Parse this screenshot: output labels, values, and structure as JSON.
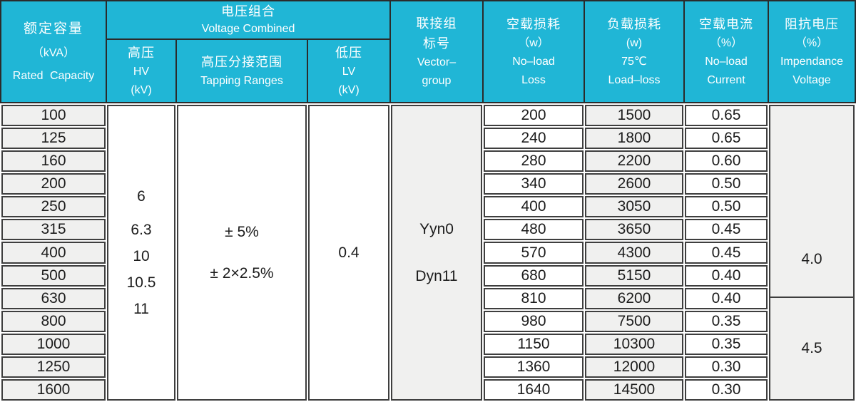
{
  "header": {
    "rated_capacity": {
      "zh": "额定容量",
      "unit": "（kVA）",
      "en": "Rated Capacity"
    },
    "voltage_combined": {
      "zh": "电压组合",
      "en": "Voltage Combined"
    },
    "hv": {
      "zh": "高压",
      "en": "HV",
      "unit": "(kV)"
    },
    "tapping": {
      "zh": "高压分接范围",
      "en": "Tapping Ranges"
    },
    "lv": {
      "zh": "低压",
      "en": "LV",
      "unit": "(kV)"
    },
    "vector_group": {
      "zh1": "联接组",
      "zh2": "标号",
      "en1": "Vector–",
      "en2": "group"
    },
    "no_load_loss": {
      "zh": "空载损耗",
      "unit": "（w）",
      "en1": "No–load",
      "en2": "Loss"
    },
    "load_loss": {
      "zh": "负载损耗",
      "unit": "(w)",
      "temp": "75℃",
      "en": "Load–loss"
    },
    "no_load_current": {
      "zh": "空载电流",
      "unit": "（%）",
      "en1": "No–load",
      "en2": "Current"
    },
    "impedance_voltage": {
      "zh": "阻抗电压",
      "unit": "（%）",
      "en1": "Impendance",
      "en2": "Voltage"
    }
  },
  "rows": {
    "capacities": [
      "100",
      "125",
      "160",
      "200",
      "250",
      "315",
      "400",
      "500",
      "630",
      "800",
      "1000",
      "1250",
      "1600"
    ],
    "no_load_loss": [
      "200",
      "240",
      "280",
      "340",
      "400",
      "480",
      "570",
      "680",
      "810",
      "980",
      "1150",
      "1360",
      "1640"
    ],
    "load_loss": [
      "1500",
      "1800",
      "2200",
      "2600",
      "3050",
      "3650",
      "4300",
      "5150",
      "6200",
      "7500",
      "10300",
      "12000",
      "14500"
    ],
    "no_load_current": [
      "0.65",
      "0.65",
      "0.60",
      "0.50",
      "0.50",
      "0.45",
      "0.45",
      "0.40",
      "0.40",
      "0.35",
      "0.35",
      "0.30",
      "0.30"
    ]
  },
  "merged": {
    "hv_values": [
      "6",
      "6.3",
      "10",
      "10.5",
      "11"
    ],
    "tapping_values": [
      "± 5%",
      "± 2×2.5%"
    ],
    "lv_value": "0.4",
    "vector_values": [
      "Yyn0",
      "Dyn11"
    ],
    "impedance_values": [
      {
        "value": "4.0",
        "rows": 8
      },
      {
        "value": "4.5",
        "rows": 5
      }
    ]
  },
  "colors": {
    "header_bg": "#20b6d6",
    "cell_gray": "#f0f0ef",
    "border": "#3e3e3e"
  }
}
